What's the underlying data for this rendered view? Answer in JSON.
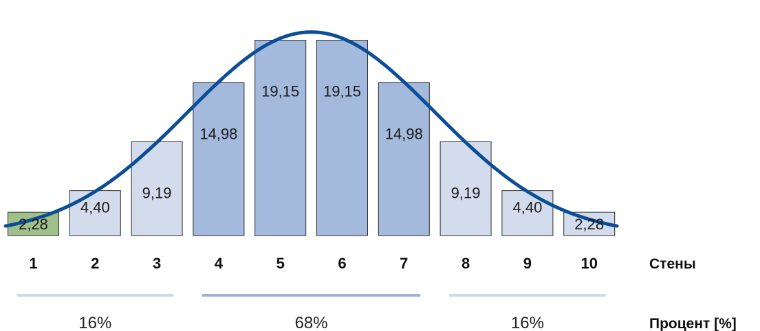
{
  "chart_data": {
    "type": "bar",
    "categories": [
      "1",
      "2",
      "3",
      "4",
      "5",
      "6",
      "7",
      "8",
      "9",
      "10"
    ],
    "values": [
      2.28,
      4.4,
      9.19,
      14.98,
      19.15,
      19.15,
      14.98,
      9.19,
      4.4,
      2.28
    ],
    "data_labels": [
      "2,28",
      "4,40",
      "9,19",
      "14,98",
      "19,15",
      "19,15",
      "14,98",
      "9,19",
      "4,40",
      "2,28"
    ],
    "xlabel": "Стены",
    "ylabel": "",
    "ylim": [
      0,
      21
    ],
    "grid": false,
    "curve": "normal-distribution",
    "groups": [
      {
        "label": "16%",
        "from": "1",
        "to": "3",
        "color": "#cfd9ea"
      },
      {
        "label": "68%",
        "from": "4",
        "to": "7",
        "color": "#9db3d6"
      },
      {
        "label": "16%",
        "from": "8",
        "to": "10",
        "color": "#cfd9ea"
      }
    ],
    "groups_title": "Процент [%]",
    "colors": {
      "outer_bar": "#d3dcec",
      "middle_bar": "#a3badd",
      "first_bar": "#9fc08a",
      "bar_stroke": "#2b2b2b",
      "curve": "#0b4d96"
    }
  }
}
